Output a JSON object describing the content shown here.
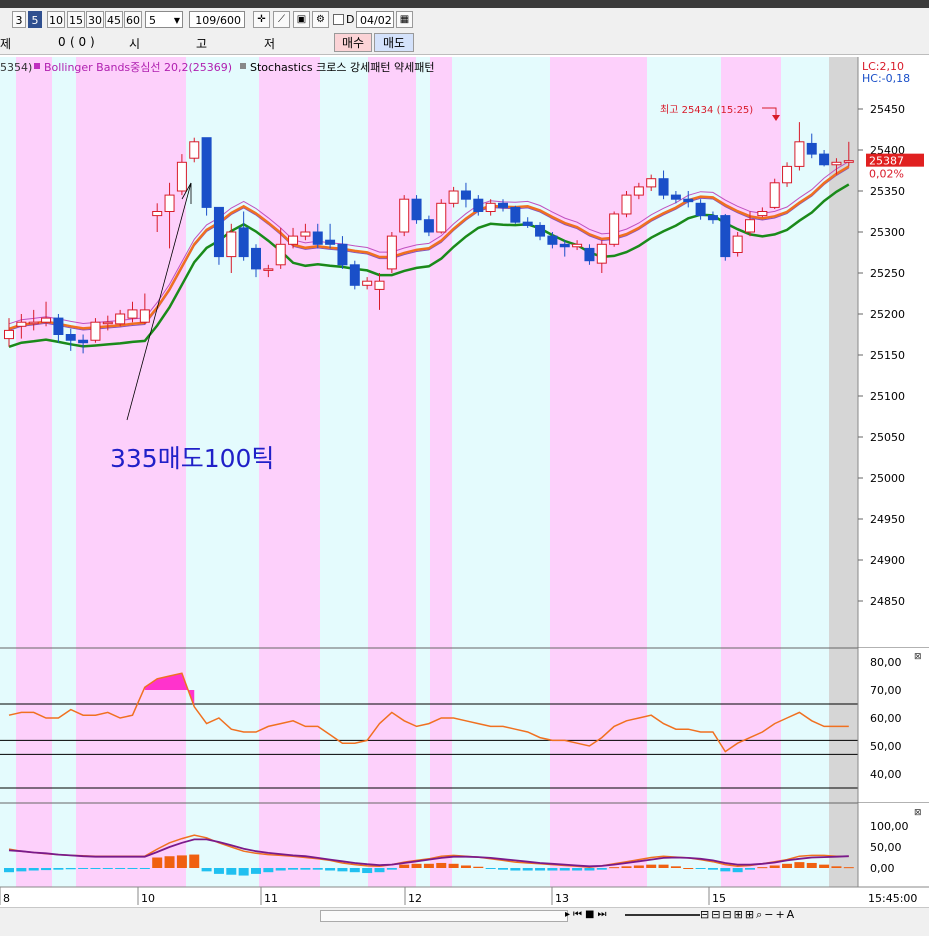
{
  "toolbar": {
    "periods": [
      "3",
      "5",
      "10",
      "15",
      "30",
      "45",
      "60"
    ],
    "active_period": "5",
    "tick_value": "5",
    "count": "109/600",
    "d_label": "D",
    "date": "04/02"
  },
  "order_bar": {
    "col1": "제",
    "col2": "0",
    "col3": "( 0 )",
    "col4": "시",
    "col5": "고",
    "col6": "저",
    "buy": "매수",
    "sell": "매도"
  },
  "legend": {
    "ma_value": "5354)",
    "bollinger": "Bollinger Bands중심선 20,2(25369)",
    "stochastics": "Stochastics 크로스 강세패턴 약세패턴"
  },
  "price_axis": {
    "lc": "LC:2,10",
    "hc": "HC:-0,18",
    "ticks": [
      "25450",
      "25400",
      "25350",
      "25300",
      "25250",
      "25200",
      "25150",
      "25100",
      "25050",
      "25000",
      "24950",
      "24900",
      "24850"
    ],
    "current_price": "25387",
    "current_change": "0,02%"
  },
  "annotations": {
    "high_label": "최고 25434 (15:25)",
    "note": "335매도100틱"
  },
  "indicator1": {
    "ticks": [
      "80,00",
      "70,00",
      "60,00",
      "50,00",
      "40,00"
    ]
  },
  "indicator2": {
    "ticks": [
      "100,00",
      "50,00",
      "0,00"
    ]
  },
  "x_axis": {
    "labels": [
      "8",
      "10",
      "11",
      "12",
      "13",
      "15"
    ],
    "time": "15:45:00"
  },
  "colors": {
    "pink_band": "#fdd0fb",
    "cyan_band": "#e4fbfd",
    "up": "#d81b2a",
    "down": "#1a4fc8",
    "orange_line": "#f07020",
    "green_line": "#1a8a1a"
  },
  "chart_data": {
    "type": "candlestick",
    "price_range": [
      24800,
      25480
    ],
    "candles": [
      {
        "o": 25170,
        "h": 25195,
        "l": 25160,
        "c": 25180
      },
      {
        "o": 25185,
        "h": 25200,
        "l": 25170,
        "c": 25190
      },
      {
        "o": 25190,
        "h": 25205,
        "l": 25180,
        "c": 25190
      },
      {
        "o": 25190,
        "h": 25215,
        "l": 25185,
        "c": 25195
      },
      {
        "o": 25195,
        "h": 25200,
        "l": 25165,
        "c": 25175
      },
      {
        "o": 25175,
        "h": 25182,
        "l": 25155,
        "c": 25168
      },
      {
        "o": 25168,
        "h": 25175,
        "l": 25152,
        "c": 25165
      },
      {
        "o": 25168,
        "h": 25195,
        "l": 25165,
        "c": 25190
      },
      {
        "o": 25190,
        "h": 25198,
        "l": 25180,
        "c": 25190
      },
      {
        "o": 25188,
        "h": 25205,
        "l": 25185,
        "c": 25200
      },
      {
        "o": 25195,
        "h": 25215,
        "l": 25190,
        "c": 25205
      },
      {
        "o": 25190,
        "h": 25225,
        "l": 25188,
        "c": 25205
      },
      {
        "o": 25320,
        "h": 25335,
        "l": 25300,
        "c": 25325
      },
      {
        "o": 25325,
        "h": 25360,
        "l": 25280,
        "c": 25345
      },
      {
        "o": 25350,
        "h": 25395,
        "l": 25345,
        "c": 25385
      },
      {
        "o": 25390,
        "h": 25415,
        "l": 25385,
        "c": 25410
      },
      {
        "o": 25415,
        "h": 25415,
        "l": 25320,
        "c": 25330
      },
      {
        "o": 25330,
        "h": 25330,
        "l": 25260,
        "c": 25270
      },
      {
        "o": 25270,
        "h": 25310,
        "l": 25250,
        "c": 25300
      },
      {
        "o": 25305,
        "h": 25325,
        "l": 25265,
        "c": 25270
      },
      {
        "o": 25280,
        "h": 25285,
        "l": 25245,
        "c": 25255
      },
      {
        "o": 25255,
        "h": 25260,
        "l": 25245,
        "c": 25255
      },
      {
        "o": 25260,
        "h": 25305,
        "l": 25255,
        "c": 25285
      },
      {
        "o": 25285,
        "h": 25305,
        "l": 25280,
        "c": 25295
      },
      {
        "o": 25295,
        "h": 25310,
        "l": 25290,
        "c": 25300
      },
      {
        "o": 25300,
        "h": 25310,
        "l": 25280,
        "c": 25285
      },
      {
        "o": 25290,
        "h": 25310,
        "l": 25280,
        "c": 25285
      },
      {
        "o": 25285,
        "h": 25295,
        "l": 25255,
        "c": 25260
      },
      {
        "o": 25260,
        "h": 25265,
        "l": 25230,
        "c": 25235
      },
      {
        "o": 25235,
        "h": 25245,
        "l": 25230,
        "c": 25240
      },
      {
        "o": 25230,
        "h": 25250,
        "l": 25205,
        "c": 25240
      },
      {
        "o": 25255,
        "h": 25300,
        "l": 25250,
        "c": 25295
      },
      {
        "o": 25300,
        "h": 25345,
        "l": 25295,
        "c": 25340
      },
      {
        "o": 25340,
        "h": 25345,
        "l": 25310,
        "c": 25315
      },
      {
        "o": 25315,
        "h": 25320,
        "l": 25295,
        "c": 25300
      },
      {
        "o": 25300,
        "h": 25340,
        "l": 25298,
        "c": 25335
      },
      {
        "o": 25335,
        "h": 25355,
        "l": 25330,
        "c": 25350
      },
      {
        "o": 25350,
        "h": 25360,
        "l": 25330,
        "c": 25340
      },
      {
        "o": 25340,
        "h": 25345,
        "l": 25320,
        "c": 25325
      },
      {
        "o": 25325,
        "h": 25340,
        "l": 25320,
        "c": 25335
      },
      {
        "o": 25335,
        "h": 25340,
        "l": 25325,
        "c": 25330
      },
      {
        "o": 25330,
        "h": 25332,
        "l": 25310,
        "c": 25312
      },
      {
        "o": 25312,
        "h": 25318,
        "l": 25305,
        "c": 25308
      },
      {
        "o": 25308,
        "h": 25312,
        "l": 25290,
        "c": 25295
      },
      {
        "o": 25295,
        "h": 25300,
        "l": 25280,
        "c": 25285
      },
      {
        "o": 25285,
        "h": 25290,
        "l": 25270,
        "c": 25282
      },
      {
        "o": 25282,
        "h": 25290,
        "l": 25278,
        "c": 25285
      },
      {
        "o": 25280,
        "h": 25285,
        "l": 25260,
        "c": 25265
      },
      {
        "o": 25262,
        "h": 25290,
        "l": 25250,
        "c": 25285
      },
      {
        "o": 25285,
        "h": 25325,
        "l": 25282,
        "c": 25322
      },
      {
        "o": 25322,
        "h": 25350,
        "l": 25318,
        "c": 25345
      },
      {
        "o": 25345,
        "h": 25360,
        "l": 25340,
        "c": 25355
      },
      {
        "o": 25355,
        "h": 25370,
        "l": 25350,
        "c": 25365
      },
      {
        "o": 25365,
        "h": 25375,
        "l": 25340,
        "c": 25345
      },
      {
        "o": 25345,
        "h": 25350,
        "l": 25335,
        "c": 25340
      },
      {
        "o": 25340,
        "h": 25350,
        "l": 25330,
        "c": 25337
      },
      {
        "o": 25335,
        "h": 25340,
        "l": 25315,
        "c": 25320
      },
      {
        "o": 25320,
        "h": 25325,
        "l": 25310,
        "c": 25315
      },
      {
        "o": 25320,
        "h": 25322,
        "l": 25265,
        "c": 25270
      },
      {
        "o": 25275,
        "h": 25300,
        "l": 25270,
        "c": 25295
      },
      {
        "o": 25300,
        "h": 25325,
        "l": 25295,
        "c": 25315
      },
      {
        "o": 25320,
        "h": 25330,
        "l": 25318,
        "c": 25325
      },
      {
        "o": 25330,
        "h": 25365,
        "l": 25328,
        "c": 25360
      },
      {
        "o": 25360,
        "h": 25385,
        "l": 25355,
        "c": 25380
      },
      {
        "o": 25380,
        "h": 25434,
        "l": 25375,
        "c": 25410
      },
      {
        "o": 25408,
        "h": 25420,
        "l": 25390,
        "c": 25395
      },
      {
        "o": 25395,
        "h": 25400,
        "l": 25380,
        "c": 25382
      },
      {
        "o": 25382,
        "h": 25390,
        "l": 25370,
        "c": 25385
      },
      {
        "o": 25385,
        "h": 25410,
        "l": 25380,
        "c": 25387
      }
    ],
    "stoch_main": [
      61,
      62,
      62,
      60,
      60,
      63,
      61,
      61,
      62,
      60,
      61,
      71,
      74,
      75,
      76,
      64,
      58,
      60,
      56,
      55,
      55,
      57,
      58,
      59,
      57,
      57,
      54,
      51,
      51,
      52,
      58,
      62,
      59,
      57,
      58,
      60,
      60,
      59,
      58,
      57,
      57,
      56,
      55,
      53,
      52,
      52,
      51,
      50,
      53,
      57,
      59,
      60,
      61,
      58,
      56,
      56,
      55,
      55,
      48,
      51,
      53,
      55,
      58,
      60,
      62,
      59,
      57,
      57,
      57
    ],
    "macd_line": [
      45,
      40,
      37,
      34,
      32,
      30,
      29,
      28,
      28,
      28,
      28,
      28,
      45,
      60,
      70,
      78,
      72,
      60,
      50,
      40,
      35,
      32,
      30,
      28,
      25,
      22,
      18,
      12,
      8,
      5,
      4,
      8,
      14,
      18,
      22,
      28,
      30,
      28,
      26,
      22,
      18,
      14,
      12,
      10,
      8,
      6,
      4,
      2,
      5,
      10,
      15,
      20,
      25,
      28,
      26,
      24,
      20,
      15,
      8,
      4,
      6,
      10,
      15,
      20,
      28,
      30,
      30,
      28,
      28
    ],
    "signal_line": [
      42,
      40,
      37,
      35,
      32,
      30,
      28,
      27,
      27,
      27,
      27,
      27,
      38,
      50,
      60,
      68,
      68,
      62,
      54,
      46,
      40,
      36,
      33,
      30,
      28,
      24,
      20,
      16,
      12,
      9,
      7,
      8,
      12,
      16,
      20,
      24,
      27,
      27,
      26,
      24,
      21,
      18,
      15,
      12,
      10,
      8,
      6,
      4,
      5,
      8,
      12,
      16,
      20,
      24,
      25,
      24,
      22,
      18,
      12,
      8,
      8,
      10,
      13,
      18,
      22,
      25,
      26,
      27,
      28
    ],
    "osc_hist": [
      -10,
      -8,
      -6,
      -5,
      -4,
      -3,
      -2,
      -1,
      -1,
      -1,
      -1,
      -1,
      25,
      28,
      30,
      32,
      -8,
      -14,
      -16,
      -18,
      -14,
      -10,
      -6,
      -4,
      -4,
      -4,
      -6,
      -8,
      -10,
      -12,
      -10,
      -4,
      8,
      10,
      10,
      12,
      10,
      6,
      3,
      -2,
      -4,
      -6,
      -6,
      -6,
      -6,
      -6,
      -6,
      -6,
      -4,
      2,
      4,
      6,
      8,
      8,
      4,
      0,
      -2,
      -4,
      -8,
      -10,
      -4,
      2,
      6,
      10,
      14,
      12,
      8,
      4,
      2
    ]
  }
}
